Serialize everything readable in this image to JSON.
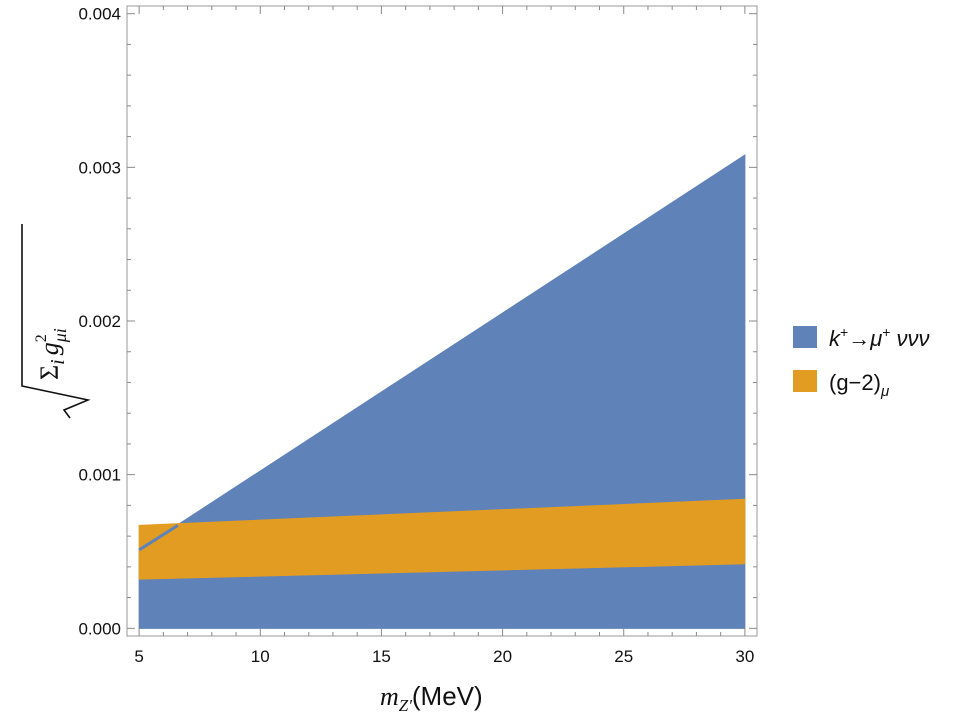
{
  "chart_data": {
    "type": "area",
    "xlim": [
      4.5,
      30.5
    ],
    "ylim": [
      -5e-05,
      0.00405
    ],
    "x_ticks": [
      5,
      10,
      15,
      20,
      25,
      30
    ],
    "x_tick_labels": [
      "5",
      "10",
      "15",
      "20",
      "25",
      "30"
    ],
    "y_ticks": [
      0,
      0.001,
      0.002,
      0.003,
      0.004
    ],
    "y_tick_labels": [
      "0.000",
      "0.001",
      "0.002",
      "0.003",
      "0.004"
    ],
    "xlabel_main": "m",
    "xlabel_sub": "Z'",
    "xlabel_unit": "(MeV)",
    "ylabel_sum": "Σ",
    "ylabel_i": "i",
    "ylabel_g": "g",
    "ylabel_sup": "2",
    "ylabel_sub": "μi",
    "grid": false,
    "legend_position": "right",
    "series": [
      {
        "name": "k⁺→μ⁺ννν",
        "color": "#5f82b8",
        "x": [
          5,
          30
        ],
        "lower": [
          0.0,
          0.0
        ],
        "upper": [
          0.00051,
          0.00308
        ]
      },
      {
        "name": "(g−2)μ",
        "color": "#e39c22",
        "x": [
          5,
          30
        ],
        "lower": [
          0.00032,
          0.00042
        ],
        "upper": [
          0.00067,
          0.00084
        ]
      }
    ],
    "blue_edge_segment": {
      "x": [
        5,
        6.6
      ],
      "y": [
        0.00051,
        0.00067
      ]
    }
  },
  "legend": [
    {
      "main": "k",
      "sup1": "+",
      "arrow": "→",
      "mu": "μ",
      "sup2": "+",
      "rest": " ννν",
      "color": "#5f82b8"
    },
    {
      "main": "(g−2)",
      "sub": "μ",
      "color": "#e39c22"
    }
  ]
}
